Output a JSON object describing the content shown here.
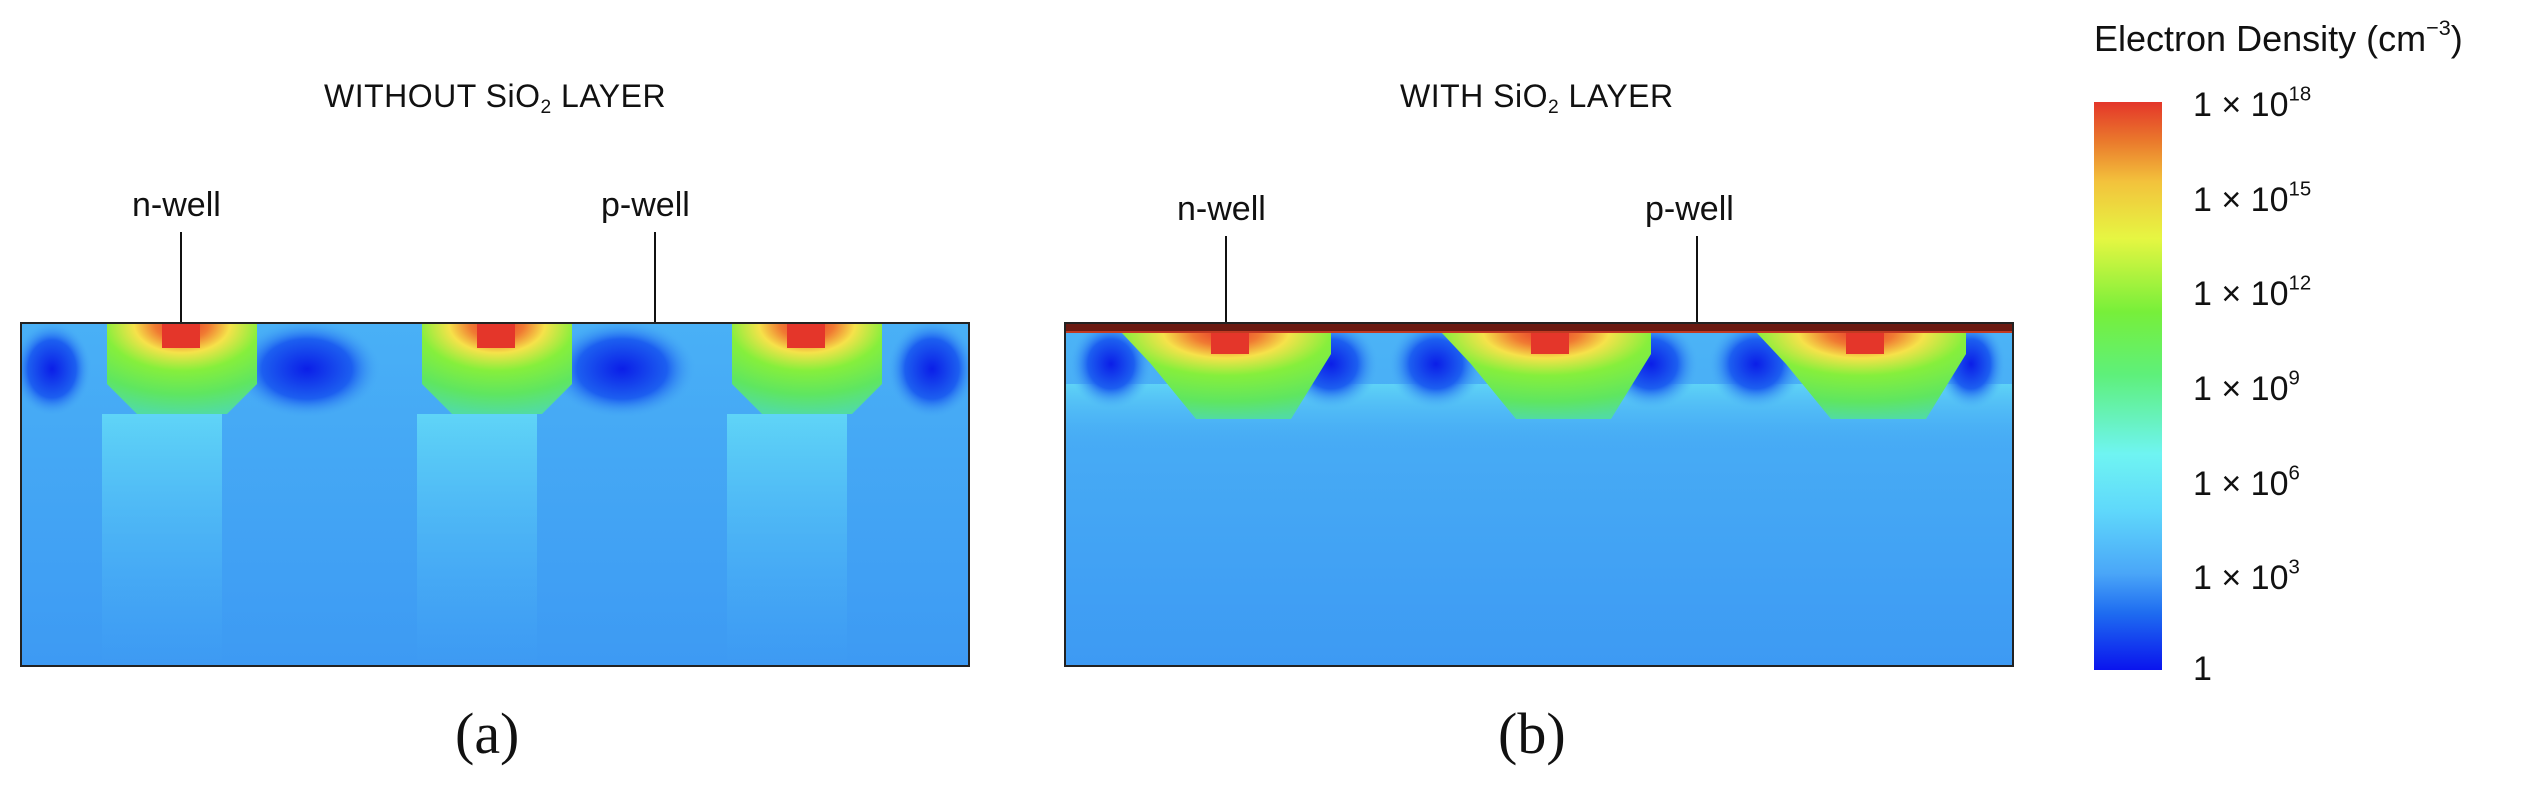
{
  "panel_a": {
    "title_pre": "WITHOUT SiO",
    "title_sub": "2",
    "title_post": " LAYER",
    "nwell_label": "n-well",
    "pwell_label": "p-well",
    "caption": "(a)"
  },
  "panel_b": {
    "title_pre": "WITH SiO",
    "title_sub": "2",
    "title_post": " LAYER",
    "nwell_label": "n-well",
    "pwell_label": "p-well",
    "caption": "(b)"
  },
  "colorbar": {
    "title_pre": "Electron Density (cm",
    "title_sup": "−3",
    "title_post": ")",
    "ticks": [
      {
        "base": "1 × 10",
        "exp": "18"
      },
      {
        "base": "1 × 10",
        "exp": "15"
      },
      {
        "base": "1 × 10",
        "exp": "12"
      },
      {
        "base": "1 × 10",
        "exp": "9"
      },
      {
        "base": "1 × 10",
        "exp": "6"
      },
      {
        "base": "1 × 10",
        "exp": "3"
      },
      {
        "base": "1",
        "exp": ""
      }
    ],
    "colors": [
      "#0a14ee",
      "#4aa6f8",
      "#6ff4f2",
      "#77ef3a",
      "#e6f642",
      "#ea7a2c",
      "#e4362a"
    ]
  }
}
